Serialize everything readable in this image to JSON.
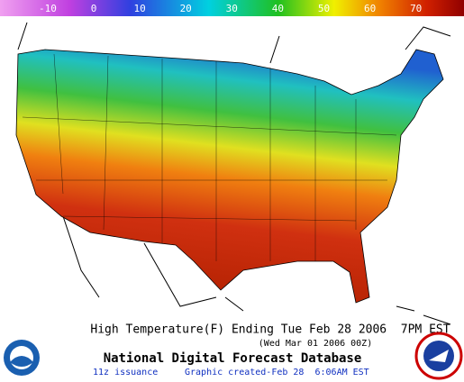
{
  "colorbar": {
    "ticks": [
      -10,
      0,
      10,
      20,
      30,
      40,
      50,
      60,
      70
    ]
  },
  "caption": {
    "title": "High Temperature(F) Ending Tue Feb 28 2006  7PM EST",
    "subtitle": "(Wed Mar 01 2006 00Z)",
    "product": "National Digital Forecast Database",
    "issuance": "11z issuance",
    "created": "Graphic created-Feb 28  6:06AM EST"
  }
}
